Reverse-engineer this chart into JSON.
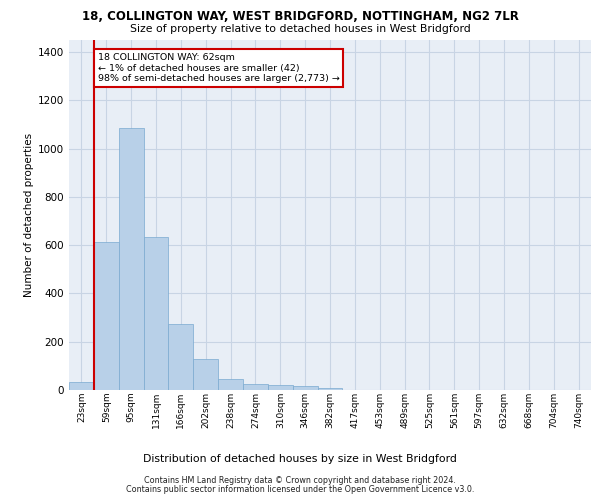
{
  "title": "18, COLLINGTON WAY, WEST BRIDGFORD, NOTTINGHAM, NG2 7LR",
  "subtitle": "Size of property relative to detached houses in West Bridgford",
  "xlabel": "Distribution of detached houses by size in West Bridgford",
  "ylabel": "Number of detached properties",
  "categories": [
    "23sqm",
    "59sqm",
    "95sqm",
    "131sqm",
    "166sqm",
    "202sqm",
    "238sqm",
    "274sqm",
    "310sqm",
    "346sqm",
    "382sqm",
    "417sqm",
    "453sqm",
    "489sqm",
    "525sqm",
    "561sqm",
    "597sqm",
    "632sqm",
    "668sqm",
    "704sqm",
    "740sqm"
  ],
  "bar_heights": [
    35,
    615,
    1085,
    635,
    275,
    128,
    45,
    25,
    22,
    18,
    10,
    0,
    0,
    0,
    0,
    0,
    0,
    0,
    0,
    0,
    0
  ],
  "bar_color": "#b8d0e8",
  "bar_edgecolor": "#7aaad0",
  "grid_color": "#c8d4e4",
  "background_color": "#e8eef6",
  "vline_color": "#cc0000",
  "annotation_text": "18 COLLINGTON WAY: 62sqm\n← 1% of detached houses are smaller (42)\n98% of semi-detached houses are larger (2,773) →",
  "annotation_box_edgecolor": "#cc0000",
  "ylim_max": 1450,
  "yticks": [
    0,
    200,
    400,
    600,
    800,
    1000,
    1200,
    1400
  ],
  "footer1": "Contains HM Land Registry data © Crown copyright and database right 2024.",
  "footer2": "Contains public sector information licensed under the Open Government Licence v3.0."
}
